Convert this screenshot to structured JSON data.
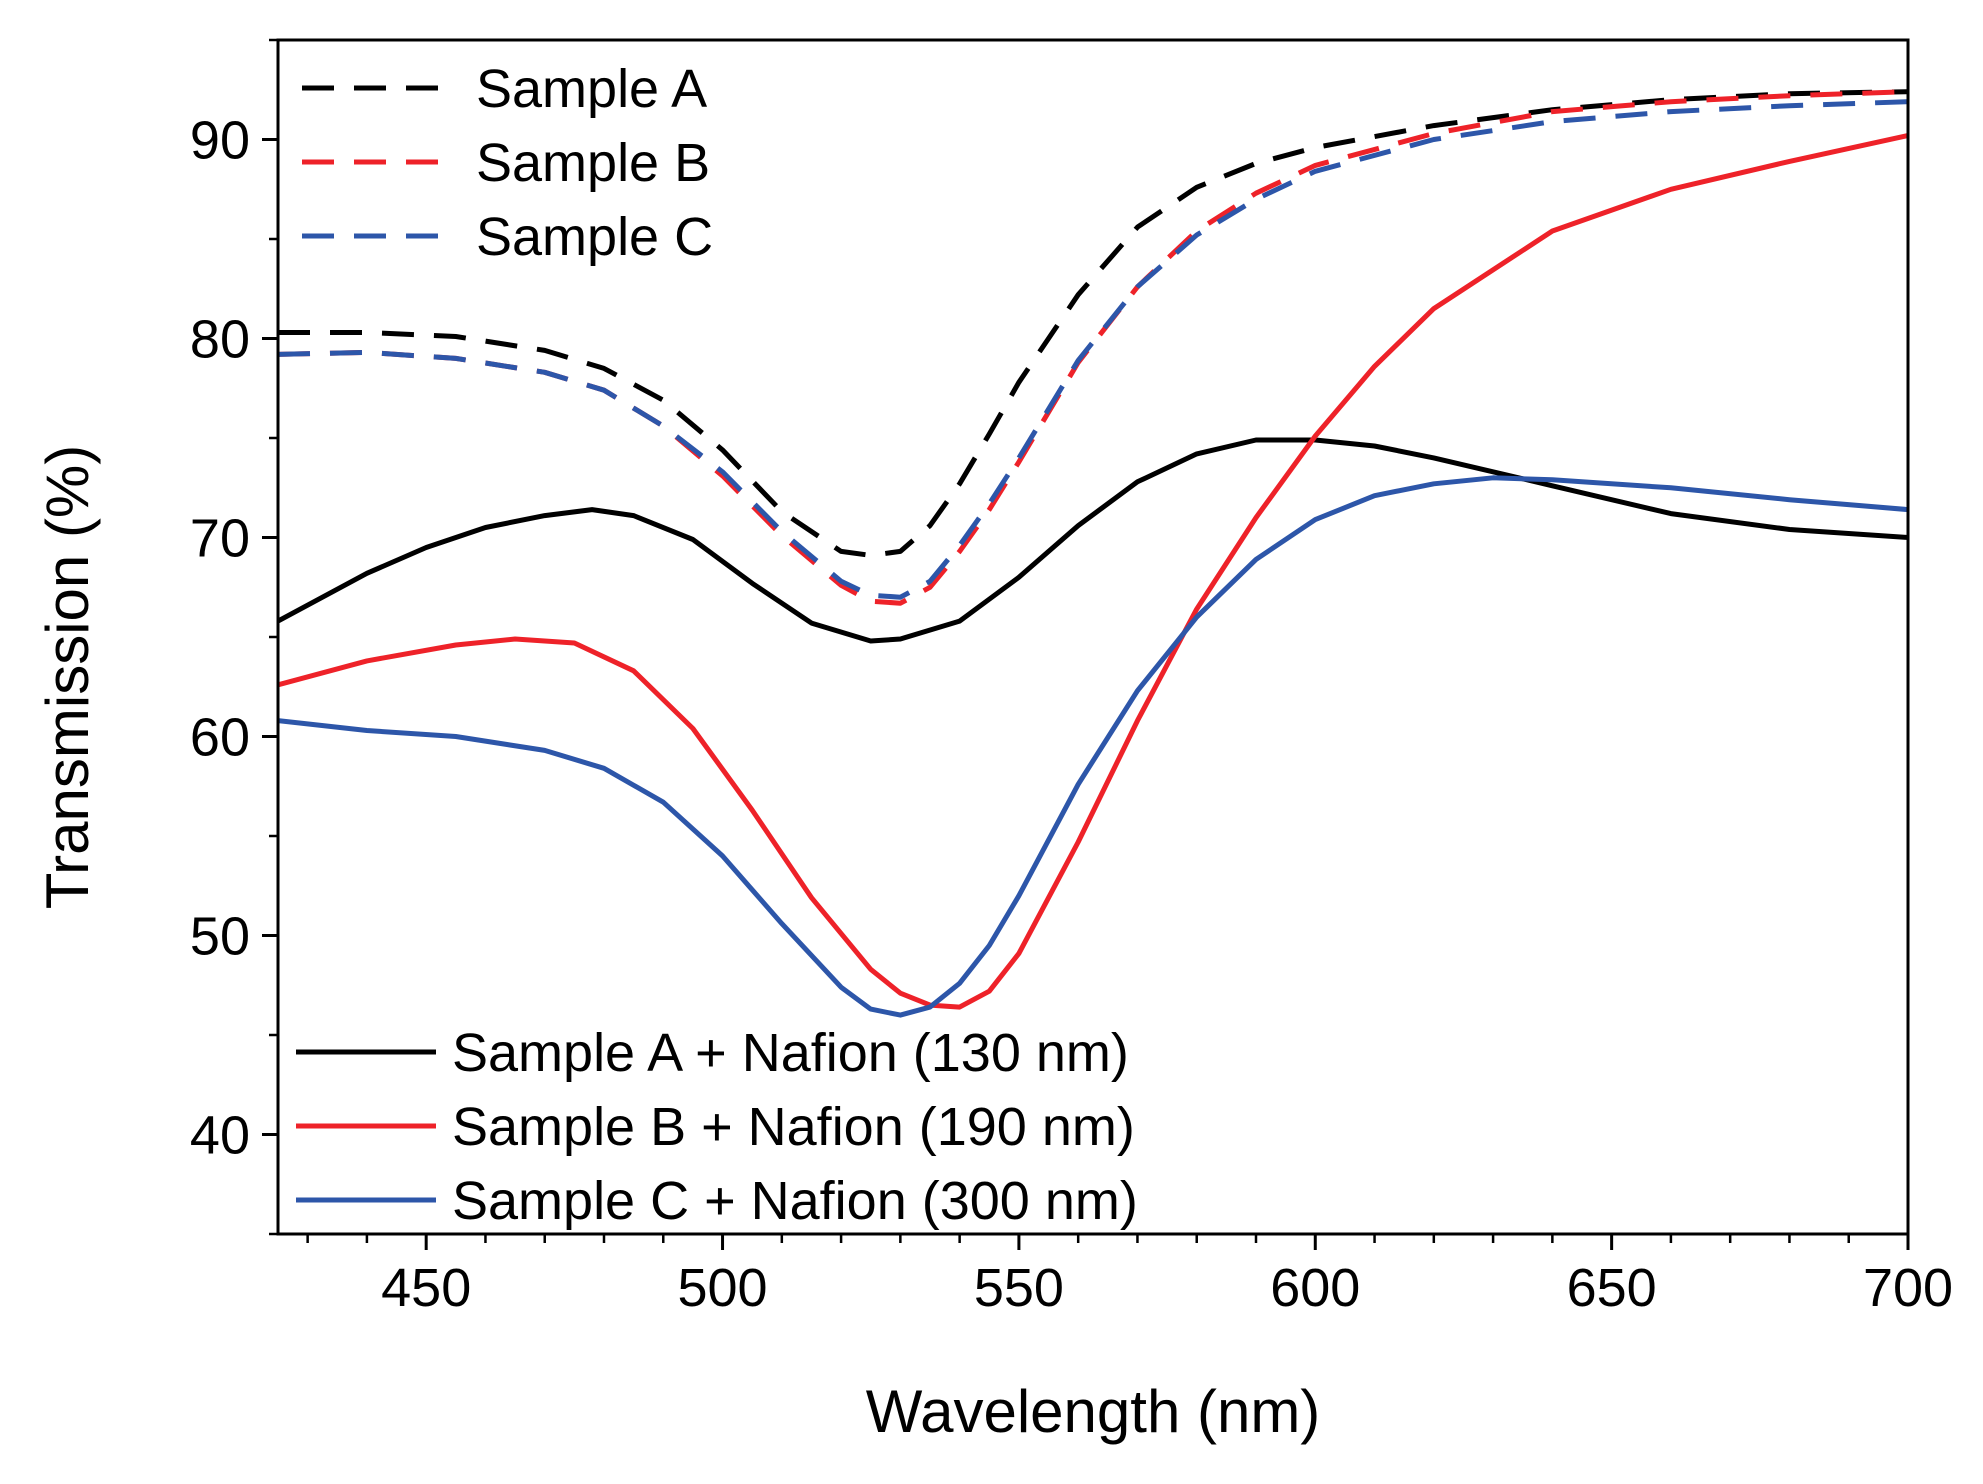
{
  "chart_data": {
    "type": "line",
    "title": "",
    "xlabel": "Wavelength (nm)",
    "ylabel": "Transmission (%)",
    "xlim": [
      425,
      700
    ],
    "ylim": [
      35,
      95
    ],
    "xticks": [
      450,
      500,
      550,
      600,
      650,
      700
    ],
    "yticks": [
      40,
      50,
      60,
      70,
      80,
      90
    ],
    "xtick_labels": [
      "450",
      "500",
      "550",
      "600",
      "650",
      "700"
    ],
    "ytick_labels": [
      "40",
      "50",
      "60",
      "70",
      "80",
      "90"
    ],
    "grid": false,
    "legend_top_location": "top-left",
    "legend_bottom_location": "bottom-left",
    "series": [
      {
        "name": "Sample A",
        "color": "#000000",
        "style": "dashed",
        "legend": "top",
        "x": [
          425,
          440,
          455,
          470,
          480,
          490,
          500,
          510,
          520,
          525,
          530,
          535,
          540,
          545,
          550,
          560,
          570,
          580,
          590,
          600,
          620,
          640,
          660,
          680,
          700
        ],
        "y": [
          80.3,
          80.3,
          80.1,
          79.4,
          78.5,
          76.9,
          74.4,
          71.3,
          69.3,
          69.1,
          69.3,
          70.6,
          72.7,
          75.2,
          77.8,
          82.2,
          85.6,
          87.6,
          88.8,
          89.6,
          90.7,
          91.5,
          92.0,
          92.3,
          92.4
        ]
      },
      {
        "name": "Sample B",
        "color": "#ee2229",
        "style": "dashed",
        "legend": "top",
        "x": [
          425,
          440,
          455,
          470,
          480,
          490,
          500,
          510,
          520,
          525,
          530,
          535,
          540,
          545,
          550,
          560,
          570,
          580,
          590,
          600,
          620,
          640,
          660,
          680,
          700
        ],
        "y": [
          79.2,
          79.3,
          79.0,
          78.3,
          77.4,
          75.6,
          73.1,
          70.1,
          67.6,
          66.8,
          66.7,
          67.5,
          69.3,
          71.4,
          73.8,
          78.8,
          82.6,
          85.4,
          87.3,
          88.7,
          90.3,
          91.4,
          91.9,
          92.2,
          92.4
        ]
      },
      {
        "name": "Sample C",
        "color": "#2d56a9",
        "style": "dashed",
        "legend": "top",
        "x": [
          425,
          440,
          455,
          470,
          480,
          490,
          500,
          510,
          520,
          525,
          530,
          535,
          540,
          545,
          550,
          560,
          570,
          580,
          590,
          600,
          620,
          640,
          660,
          680,
          700
        ],
        "y": [
          79.2,
          79.3,
          79.0,
          78.3,
          77.4,
          75.6,
          73.3,
          70.3,
          67.8,
          67.1,
          67.0,
          67.8,
          69.6,
          71.7,
          74.0,
          78.9,
          82.6,
          85.2,
          87.0,
          88.4,
          90.0,
          90.9,
          91.4,
          91.7,
          91.9
        ]
      },
      {
        "name": "Sample A + Nafion (130 nm)",
        "color": "#000000",
        "style": "solid",
        "legend": "bottom",
        "x": [
          425,
          440,
          450,
          460,
          470,
          478,
          485,
          495,
          505,
          515,
          525,
          530,
          540,
          550,
          560,
          570,
          580,
          590,
          600,
          610,
          620,
          640,
          660,
          680,
          700
        ],
        "y": [
          65.8,
          68.2,
          69.5,
          70.5,
          71.1,
          71.4,
          71.1,
          69.9,
          67.7,
          65.7,
          64.8,
          64.9,
          65.8,
          68.0,
          70.6,
          72.8,
          74.2,
          74.9,
          74.9,
          74.6,
          74.0,
          72.6,
          71.2,
          70.4,
          70.0
        ]
      },
      {
        "name": "Sample B + Nafion (190 nm)",
        "color": "#ee2229",
        "style": "solid",
        "legend": "bottom",
        "x": [
          425,
          440,
          455,
          465,
          475,
          485,
          495,
          505,
          515,
          525,
          530,
          535,
          540,
          545,
          550,
          560,
          570,
          580,
          590,
          600,
          610,
          620,
          640,
          660,
          680,
          700
        ],
        "y": [
          62.6,
          63.8,
          64.6,
          64.9,
          64.7,
          63.3,
          60.4,
          56.3,
          51.9,
          48.3,
          47.1,
          46.5,
          46.4,
          47.2,
          49.1,
          54.7,
          60.8,
          66.4,
          71.0,
          75.1,
          78.6,
          81.5,
          85.4,
          87.5,
          88.9,
          90.2
        ]
      },
      {
        "name": "Sample C + Nafion (300 nm)",
        "color": "#2d56a9",
        "style": "solid",
        "legend": "bottom",
        "x": [
          425,
          440,
          455,
          470,
          480,
          490,
          500,
          510,
          520,
          525,
          530,
          535,
          540,
          545,
          550,
          560,
          570,
          580,
          590,
          600,
          610,
          620,
          630,
          640,
          660,
          680,
          700
        ],
        "y": [
          60.8,
          60.3,
          60.0,
          59.3,
          58.4,
          56.7,
          54.0,
          50.6,
          47.4,
          46.3,
          46.0,
          46.4,
          47.6,
          49.5,
          52.0,
          57.6,
          62.3,
          66.0,
          68.9,
          70.9,
          72.1,
          72.7,
          73.0,
          72.9,
          72.5,
          71.9,
          71.4
        ]
      }
    ]
  }
}
